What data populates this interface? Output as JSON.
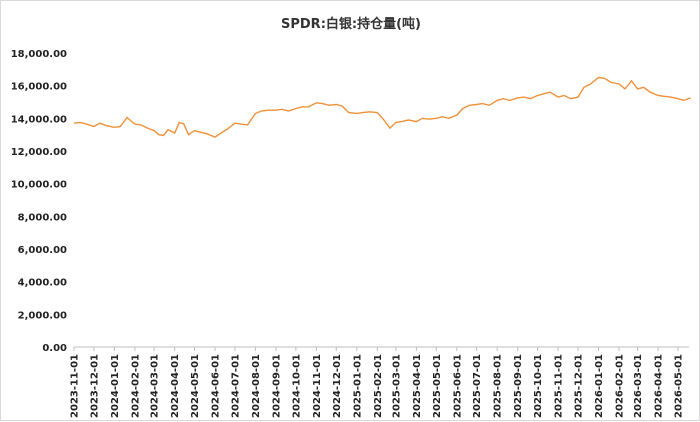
{
  "chart_data": {
    "type": "line",
    "title": "SPDR:白银:持仓量(吨)",
    "xlabel": "",
    "ylabel": "",
    "ylim": [
      0,
      18000
    ],
    "yticks": [
      "0.00",
      "2,000.00",
      "4,000.00",
      "6,000.00",
      "8,000.00",
      "10,000.00",
      "12,000.00",
      "14,000.00",
      "16,000.00",
      "18,000.00"
    ],
    "x_ticks": [
      "2023-11-01",
      "2023-12-01",
      "2024-01-01",
      "2024-02-01",
      "2024-03-01",
      "2024-04-01",
      "2024-05-01",
      "2024-06-01",
      "2024-07-01",
      "2024-08-01",
      "2024-09-01",
      "2024-10-01",
      "2024-11-01",
      "2024-12-01",
      "2025-01-01",
      "2025-02-01",
      "2025-03-01",
      "2025-04-01",
      "2025-05-01",
      "2025-06-01",
      "2025-07-01",
      "2025-08-01",
      "2025-09-01",
      "2025-10-01",
      "2025-11-01",
      "2025-12-01",
      "2026-01-01",
      "2026-02-01",
      "2026-03-01",
      "2026-04-01",
      "2026-05-01"
    ],
    "grid": false,
    "legend": "none",
    "color": "#f0913a",
    "series": [
      {
        "x": [
          "2023-11-01",
          "2023-11-10",
          "2023-11-20",
          "2023-12-01",
          "2023-12-10",
          "2023-12-20",
          "2024-01-01",
          "2024-01-10",
          "2024-01-20",
          "2024-02-01",
          "2024-02-10",
          "2024-02-20",
          "2024-03-01",
          "2024-03-08",
          "2024-03-15",
          "2024-03-22",
          "2024-04-01",
          "2024-04-08",
          "2024-04-15",
          "2024-04-22",
          "2024-05-01",
          "2024-05-10",
          "2024-05-20",
          "2024-06-01",
          "2024-06-10",
          "2024-06-20",
          "2024-07-01",
          "2024-07-10",
          "2024-07-20",
          "2024-08-01",
          "2024-08-10",
          "2024-08-20",
          "2024-09-01",
          "2024-09-10",
          "2024-09-20",
          "2024-10-01",
          "2024-10-10",
          "2024-10-20",
          "2024-11-01",
          "2024-11-10",
          "2024-11-20",
          "2024-12-01",
          "2024-12-10",
          "2024-12-20",
          "2025-01-01",
          "2025-01-10",
          "2025-01-20",
          "2025-02-01",
          "2025-02-10",
          "2025-02-20",
          "2025-03-01",
          "2025-03-10",
          "2025-03-20",
          "2025-04-01",
          "2025-04-10",
          "2025-04-20",
          "2025-05-01",
          "2025-05-10",
          "2025-05-20",
          "2025-06-01",
          "2025-06-10",
          "2025-06-20",
          "2025-07-01",
          "2025-07-10",
          "2025-07-20",
          "2025-08-01",
          "2025-08-10",
          "2025-08-20",
          "2025-09-01",
          "2025-09-10",
          "2025-09-20",
          "2025-10-01",
          "2025-10-10",
          "2025-10-20",
          "2025-11-01",
          "2025-11-10",
          "2025-11-20",
          "2025-12-01",
          "2025-12-10",
          "2025-12-20",
          "2026-01-01",
          "2026-01-10",
          "2026-01-20",
          "2026-02-01",
          "2026-02-10",
          "2026-02-20",
          "2026-03-01",
          "2026-03-10",
          "2026-03-20",
          "2026-04-01",
          "2026-04-10",
          "2026-04-20",
          "2026-05-01",
          "2026-05-10",
          "2026-05-20"
        ],
        "values": [
          13700,
          13750,
          13650,
          13500,
          13700,
          13550,
          13450,
          13500,
          14050,
          13650,
          13600,
          13400,
          13250,
          13000,
          12950,
          13300,
          13100,
          13750,
          13650,
          13000,
          13250,
          13150,
          13050,
          12850,
          13100,
          13350,
          13700,
          13650,
          13600,
          14300,
          14450,
          14500,
          14500,
          14550,
          14450,
          14600,
          14700,
          14700,
          14950,
          14900,
          14800,
          14850,
          14750,
          14350,
          14300,
          14350,
          14400,
          14350,
          13950,
          13400,
          13750,
          13800,
          13900,
          13800,
          14000,
          13950,
          14000,
          14100,
          14000,
          14200,
          14600,
          14800,
          14850,
          14900,
          14800,
          15100,
          15200,
          15100,
          15250,
          15300,
          15200,
          15400,
          15500,
          15600,
          15300,
          15400,
          15200,
          15300,
          15900,
          16100,
          16500,
          16450,
          16200,
          16100,
          15800,
          16300,
          15800,
          15900,
          15600,
          15400,
          15350,
          15300,
          15200,
          15100,
          15250
        ]
      }
    ]
  }
}
